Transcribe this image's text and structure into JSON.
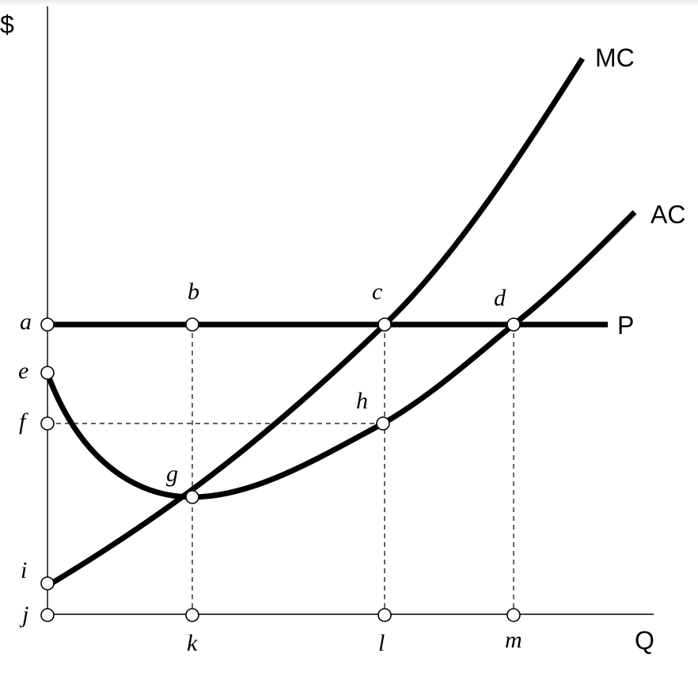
{
  "axes": {
    "y_label": "$",
    "x_label": "Q"
  },
  "curves": {
    "mc_label": "MC",
    "ac_label": "AC",
    "p_label": "P"
  },
  "points": {
    "a": "a",
    "b": "b",
    "c": "c",
    "d": "d",
    "e": "e",
    "f": "f",
    "g": "g",
    "h": "h",
    "i": "i",
    "j": "j",
    "k": "k",
    "l": "l",
    "m": "m"
  }
}
